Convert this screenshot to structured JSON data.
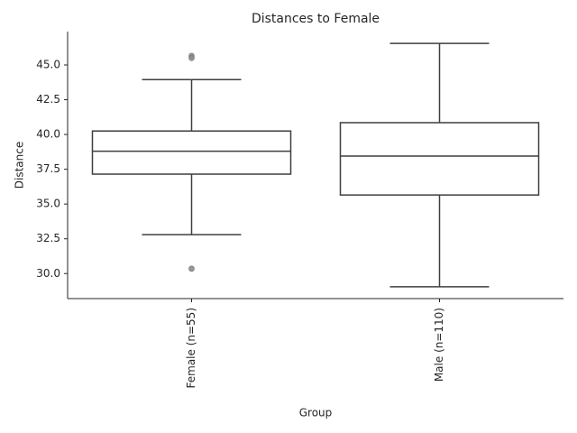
{
  "chart_data": {
    "type": "box",
    "title": "Distances to Female",
    "x_label": "Group",
    "y_label": "Distance",
    "categories": [
      "Female (n=55)",
      "Male (n=110)"
    ],
    "whislo": [
      32.8,
      29.05
    ],
    "q1": [
      37.15,
      35.65
    ],
    "med": [
      38.8,
      38.45
    ],
    "q3": [
      40.25,
      40.85
    ],
    "whishi": [
      43.95,
      46.55
    ],
    "fliers": [
      [
        45.65,
        45.5,
        30.35
      ],
      []
    ],
    "color": "#3f3f3f",
    "box_fill": "#ffffff",
    "flier_color": "#8c8c8c",
    "ylim": [
      28.2,
      47.4
    ],
    "yticks": [
      {
        "value": 30,
        "label": "30.0"
      },
      32.5,
      {
        "value": 35,
        "label": "35.0"
      },
      37.5,
      {
        "value": 40,
        "label": "40.0"
      },
      42.5,
      {
        "value": 45,
        "label": "45.0"
      }
    ]
  }
}
